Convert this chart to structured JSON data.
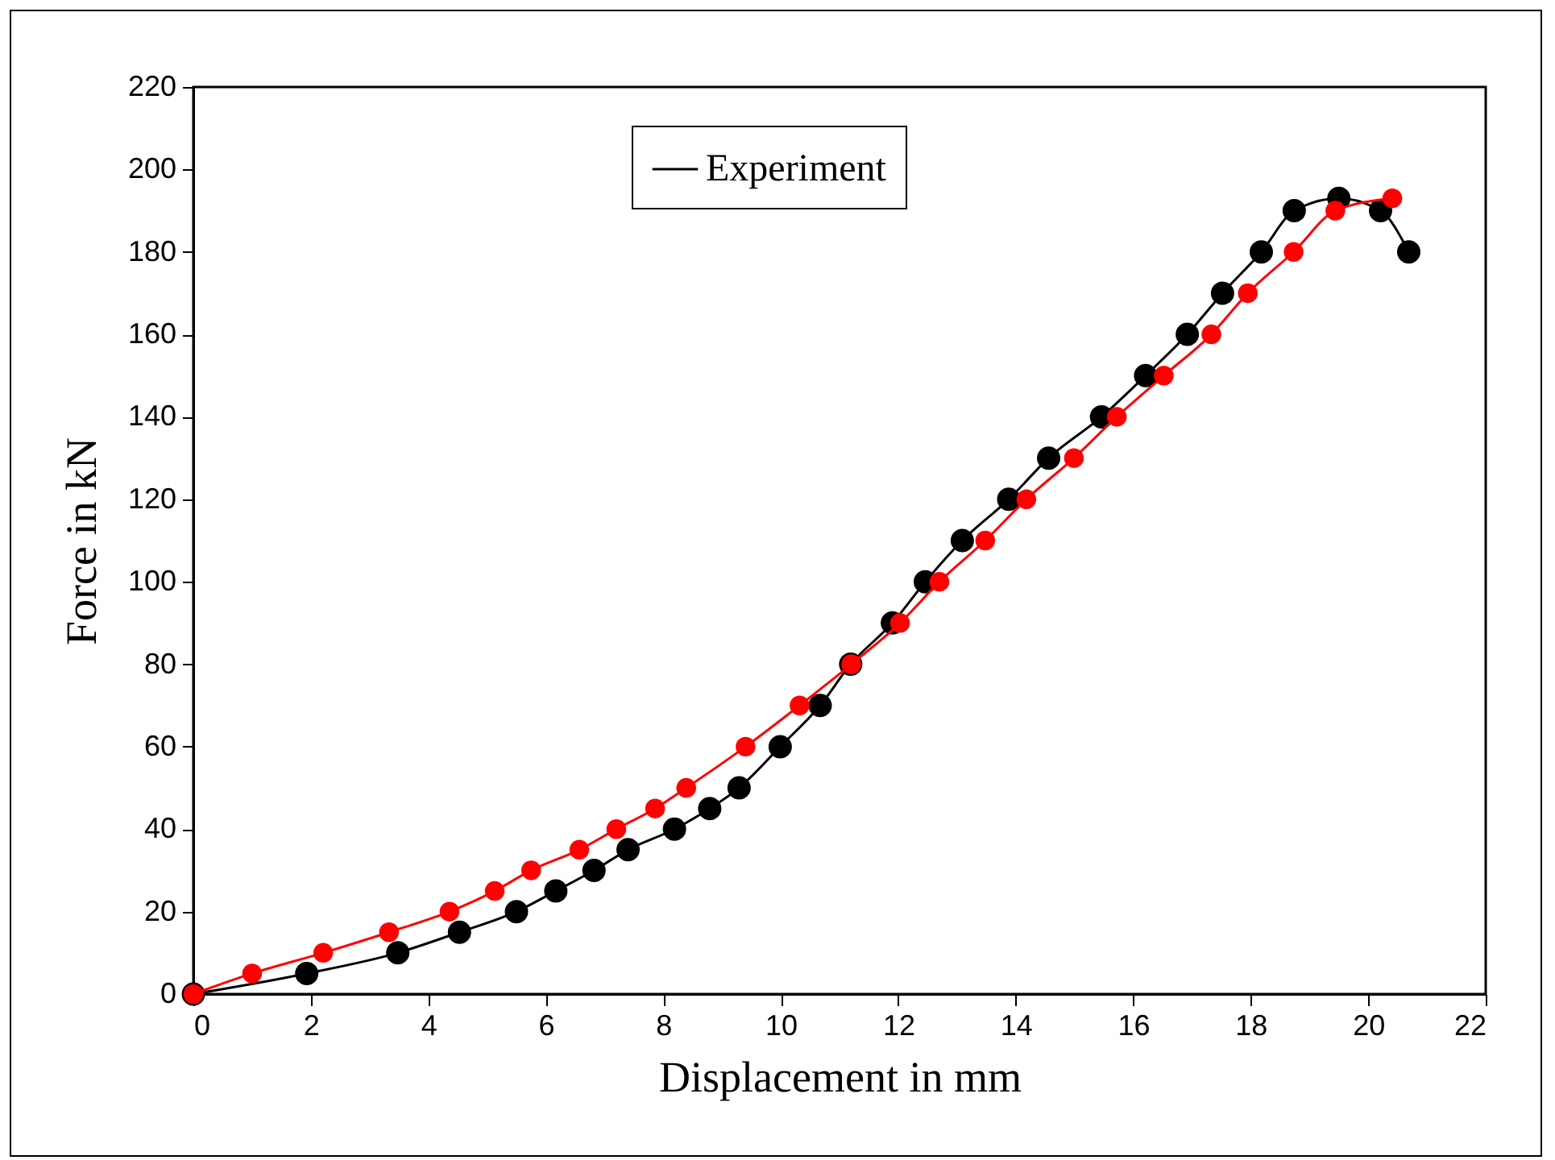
{
  "chart_data": {
    "type": "line",
    "xlabel": "Displacement in mm",
    "ylabel": "Force in kN",
    "xlim": [
      0,
      22
    ],
    "xticks": [
      0,
      2,
      4,
      6,
      8,
      10,
      12,
      14,
      16,
      18,
      20,
      22
    ],
    "ylim": [
      0,
      220
    ],
    "yticks": [
      0,
      20,
      40,
      60,
      80,
      100,
      120,
      140,
      160,
      180,
      200,
      220
    ],
    "grid": false,
    "legend": "top",
    "marker": "circle",
    "line_style": "solid",
    "series": [
      {
        "name": "Experiment",
        "color": "#000000",
        "x": [
          0,
          1.93,
          3.48,
          4.53,
          5.5,
          6.17,
          6.82,
          7.4,
          8.19,
          8.79,
          9.29,
          9.99,
          10.67,
          11.19,
          11.9,
          12.46,
          13.09,
          13.88,
          14.56,
          15.46,
          16.21,
          16.92,
          17.52,
          18.18,
          18.74,
          19.5,
          20.21,
          20.69
        ],
        "values": [
          0,
          5,
          10,
          15,
          20,
          25,
          30,
          35,
          40,
          45,
          50,
          60,
          70,
          80,
          90,
          100,
          110,
          120,
          130,
          140,
          150,
          160,
          170,
          180,
          190,
          193,
          190,
          180
        ]
      },
      {
        "color": "#ff0000",
        "x": [
          0,
          1.0,
          2.21,
          3.33,
          4.36,
          5.13,
          5.75,
          6.57,
          7.2,
          7.86,
          8.39,
          9.4,
          10.32,
          11.2,
          12.03,
          12.7,
          13.48,
          14.18,
          14.99,
          15.72,
          16.52,
          17.33,
          17.95,
          18.73,
          19.44,
          20.41
        ],
        "values": [
          0,
          5,
          10,
          15,
          20,
          25,
          30,
          35,
          40,
          45,
          50,
          60,
          70,
          80,
          90,
          100,
          110,
          120,
          130,
          140,
          150,
          160,
          170,
          180,
          190,
          193
        ]
      }
    ]
  }
}
